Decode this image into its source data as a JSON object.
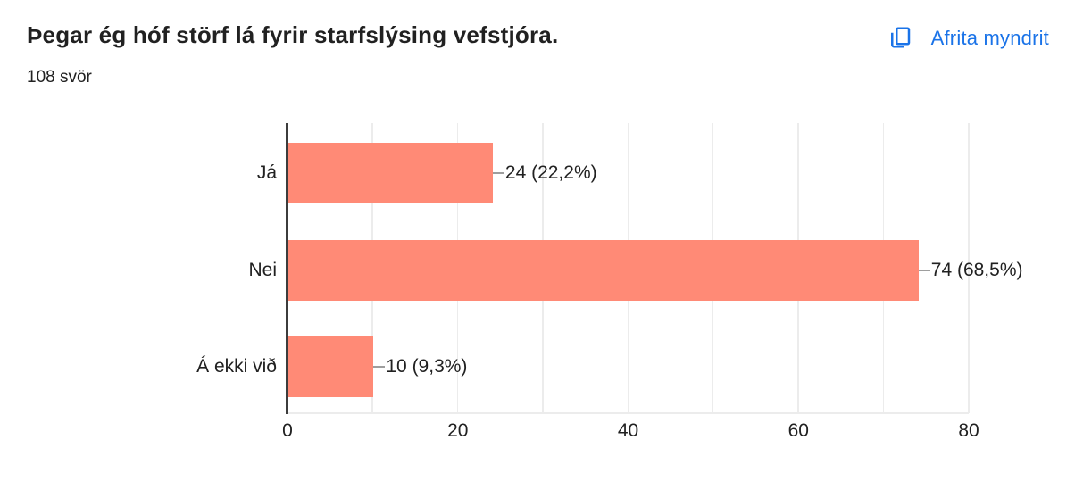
{
  "header": {
    "title": "Þegar ég hóf störf lá fyrir starfslýsing vefstjóra.",
    "subtitle": "108 svör",
    "copy_button_label": "Afrita myndrit",
    "accent_color": "#1a73e8"
  },
  "chart_data": {
    "type": "bar",
    "orientation": "horizontal",
    "title": "Þegar ég hóf störf lá fyrir starfslýsing vefstjóra.",
    "subtitle": "108 svör",
    "total_responses": 108,
    "categories": [
      "Já",
      "Nei",
      "Á ekki við"
    ],
    "values": [
      24,
      74,
      10
    ],
    "value_labels": [
      "24 (22,2%)",
      "74 (68,5%)",
      "10 (9,3%)"
    ],
    "x_ticks": [
      0,
      20,
      40,
      60,
      80
    ],
    "xlim": [
      0,
      80
    ],
    "grid_step": 10,
    "grid": true,
    "legend": false,
    "bar_color": "#FF8A76",
    "xlabel": "",
    "ylabel": ""
  }
}
